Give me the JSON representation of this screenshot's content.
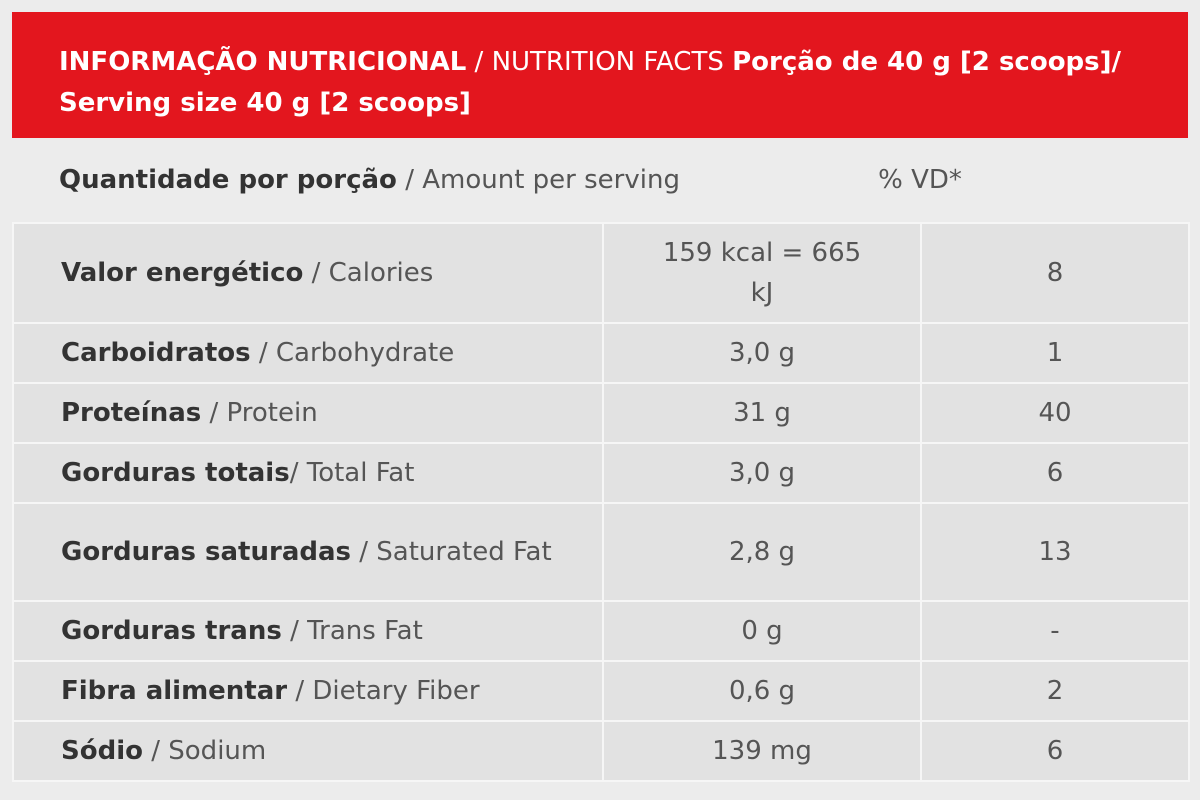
{
  "header": {
    "title_pt": "INFORMAÇÃO NUTRICIONAL",
    "title_en": " / NUTRITION FACTS ",
    "serving": "Porção de 40 g [2 scoops]/ Serving size 40 g [2 scoops]"
  },
  "amount_row": {
    "label_pt": "Quantidade por porção",
    "label_en": " / Amount per serving",
    "vd": "% VD*"
  },
  "rows": [
    {
      "name_pt": "Valor energético",
      "name_en": " / Calories",
      "qty": "159 kcal = 665 kJ",
      "vd": "8"
    },
    {
      "name_pt": "Carboidratos",
      "name_en": " / Carbohydrate",
      "qty": "3,0 g",
      "vd": "1"
    },
    {
      "name_pt": "Proteínas",
      "name_en": " / Protein",
      "qty": "31 g",
      "vd": "40"
    },
    {
      "name_pt": "Gorduras totais",
      "name_en": "/ Total Fat",
      "qty": "3,0 g",
      "vd": "6"
    },
    {
      "name_pt": "Gorduras saturadas",
      "name_en": " / Saturated Fat",
      "qty": "2,8 g",
      "vd": "13"
    },
    {
      "name_pt": "Gorduras trans",
      "name_en": " / Trans Fat",
      "qty": "0 g",
      "vd": "-"
    },
    {
      "name_pt": "Fibra alimentar",
      "name_en": " / Dietary Fiber",
      "qty": "0,6 g",
      "vd": "2"
    },
    {
      "name_pt": "Sódio",
      "name_en": " / Sodium",
      "qty": "139 mg",
      "vd": "6"
    }
  ],
  "colors": {
    "header_bg": "#e3161e",
    "row_bg": "#e2e2e2",
    "border": "#f6f6f6"
  }
}
